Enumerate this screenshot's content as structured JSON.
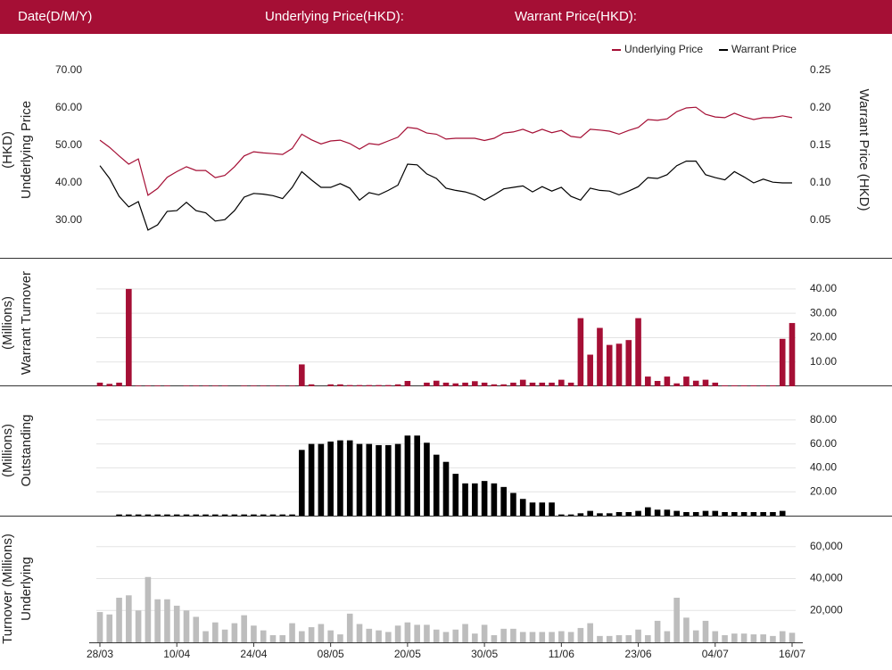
{
  "header": {
    "date_label": "Date(D/M/Y)",
    "underlying_label": "Underlying Price(HKD):",
    "warrant_label": "Warrant Price(HKD):"
  },
  "chart_data": [
    {
      "type": "line",
      "y_label": [
        "Underlying Price",
        "(HKD)"
      ],
      "y2_label": "Warrant  Price (HKD)",
      "legend": "top-right",
      "ylim": [
        30,
        70
      ],
      "yticks": [
        {
          "value": 30,
          "label": "30.00"
        },
        {
          "value": 40,
          "label": "40.00"
        },
        {
          "value": 50,
          "label": "50.00"
        },
        {
          "value": 60,
          "label": "60.00"
        },
        {
          "value": 70,
          "label": "70.00"
        }
      ],
      "y2lim": [
        0.05,
        0.25
      ],
      "y2ticks": [
        0.05,
        {
          "value": 0.1,
          "label": "0.10"
        },
        0.15,
        {
          "value": 0.2,
          "label": "0.20"
        },
        0.25
      ],
      "series": [
        {
          "name": "Underlying Price",
          "color": "#a50f35",
          "values": [
            51.4,
            49.5,
            47.2,
            45,
            46.4,
            36.7,
            38.5,
            41.5,
            43,
            44.3,
            43.3,
            43.3,
            41.4,
            42,
            44.3,
            47.2,
            48.3,
            48,
            47.8,
            47.6,
            49.2,
            53,
            51.5,
            50.4,
            51.2,
            51.4,
            50.5,
            49,
            50.5,
            50.2,
            51.2,
            52.2,
            54.8,
            54.5,
            53.3,
            53,
            51.7,
            51.9,
            51.9,
            51.9,
            51.3,
            51.9,
            53.3,
            53.6,
            54.3,
            53.3,
            54.3,
            53.4,
            54,
            52.4,
            52.1,
            54.3,
            54.1,
            53.8,
            53,
            54,
            54.8,
            56.9,
            56.7,
            57.1,
            59,
            60,
            60.2,
            58.3,
            57.6,
            57.4,
            58.6,
            57.6,
            56.9,
            57.4,
            57.4,
            57.9,
            57.4
          ]
        },
        {
          "name": "Warrant Price",
          "color": "#000000",
          "axis": "y2",
          "values": [
            0.123,
            0.106,
            0.082,
            0.068,
            0.075,
            0.037,
            0.044,
            0.062,
            0.063,
            0.074,
            0.063,
            0.06,
            0.049,
            0.051,
            0.063,
            0.081,
            0.086,
            0.085,
            0.083,
            0.079,
            0.094,
            0.115,
            0.104,
            0.094,
            0.094,
            0.099,
            0.093,
            0.077,
            0.087,
            0.084,
            0.09,
            0.097,
            0.125,
            0.124,
            0.112,
            0.106,
            0.093,
            0.09,
            0.088,
            0.084,
            0.077,
            0.084,
            0.092,
            0.094,
            0.096,
            0.088,
            0.095,
            0.089,
            0.094,
            0.082,
            0.077,
            0.093,
            0.09,
            0.089,
            0.084,
            0.089,
            0.095,
            0.107,
            0.106,
            0.111,
            0.123,
            0.129,
            0.129,
            0.111,
            0.107,
            0.104,
            0.115,
            0.108,
            0.1,
            0.105,
            0.101,
            0.1,
            0.1
          ]
        }
      ]
    },
    {
      "type": "bar",
      "y_label": [
        "Warrant  Turnover",
        "(Millions)"
      ],
      "color": "#a50f35",
      "grid": true,
      "ylim": [
        0,
        50
      ],
      "yticks": [
        {
          "value": 10,
          "label": "10.00"
        },
        {
          "value": 20,
          "label": "20.00"
        },
        {
          "value": 30,
          "label": "30.00"
        },
        {
          "value": 40,
          "label": "40.00"
        }
      ],
      "values": [
        1.5,
        1,
        1.5,
        40,
        0.3,
        0.3,
        0.3,
        0.3,
        0,
        0.3,
        0.3,
        0.3,
        0.3,
        0.3,
        0,
        0.3,
        0.3,
        0.3,
        0.3,
        0.3,
        0.3,
        9,
        0.8,
        0,
        0.8,
        0.8,
        0.5,
        0.5,
        0.5,
        0.5,
        0.5,
        0.8,
        2.2,
        0,
        1.5,
        2.3,
        1.5,
        1.2,
        1.5,
        2.1,
        1.5,
        0.8,
        0.8,
        1.5,
        2.7,
        1.5,
        1.5,
        1.5,
        2.7,
        1.5,
        28,
        13,
        24,
        17,
        17.5,
        19,
        28,
        4,
        2.2,
        4,
        1.2,
        4,
        2.3,
        2.7,
        1.5,
        0.4,
        0.4,
        0.4,
        0.4,
        0.4,
        0.4,
        19.5,
        26
      ]
    },
    {
      "type": "bar",
      "y_label": [
        "Outstanding",
        "(Millions)"
      ],
      "color": "#000000",
      "grid": true,
      "ylim": [
        0,
        100
      ],
      "yticks": [
        {
          "value": 20,
          "label": "20.00"
        },
        {
          "value": 40,
          "label": "40.00"
        },
        {
          "value": 60,
          "label": "60.00"
        },
        {
          "value": 80,
          "label": "80.00"
        }
      ],
      "values": [
        0,
        0,
        1,
        1,
        1,
        1,
        1,
        1,
        1,
        1,
        1,
        1,
        1,
        1,
        1,
        1,
        1,
        1,
        1,
        1,
        1,
        55,
        60,
        60,
        62,
        63,
        63,
        60,
        60,
        59,
        59,
        60,
        67,
        67,
        61,
        51,
        45,
        35,
        27,
        27,
        29,
        27,
        24,
        19,
        14,
        11,
        11,
        11,
        1,
        1,
        2,
        4,
        2,
        2,
        3,
        3,
        4,
        7,
        5,
        5,
        4,
        3,
        3,
        4,
        4,
        3,
        3,
        3,
        3,
        3,
        3,
        4,
        0
      ]
    },
    {
      "type": "bar",
      "y_label": [
        "Underlying",
        "Turnover (Millions)"
      ],
      "color": "#bdbdbd",
      "grid": true,
      "ylim": [
        0,
        75000
      ],
      "yticks": [
        {
          "value": 20000,
          "label": "20,000"
        },
        {
          "value": 40000,
          "label": "40,000"
        },
        {
          "value": 60000,
          "label": "60,000"
        }
      ],
      "categories": [
        "28/03",
        null,
        null,
        null,
        null,
        null,
        null,
        null,
        "10/04",
        null,
        null,
        null,
        null,
        null,
        null,
        null,
        "24/04",
        null,
        null,
        null,
        null,
        null,
        null,
        null,
        "08/05",
        null,
        null,
        null,
        null,
        null,
        null,
        null,
        "20/05",
        null,
        null,
        null,
        null,
        null,
        null,
        null,
        "30/05",
        null,
        null,
        null,
        null,
        null,
        null,
        null,
        "11/06",
        null,
        null,
        null,
        null,
        null,
        null,
        null,
        "23/06",
        null,
        null,
        null,
        null,
        null,
        null,
        null,
        "04/07",
        null,
        null,
        null,
        null,
        null,
        null,
        null,
        "16/07"
      ],
      "values": [
        19000,
        17500,
        28000,
        29500,
        20000,
        41000,
        27000,
        27000,
        23000,
        20000,
        16000,
        7000,
        12500,
        8000,
        12000,
        17000,
        10500,
        7500,
        4500,
        4500,
        12000,
        7000,
        9500,
        11500,
        7500,
        5000,
        18000,
        11500,
        8500,
        7500,
        6500,
        10500,
        12500,
        11000,
        11000,
        8000,
        6500,
        8000,
        11500,
        5500,
        11000,
        4500,
        8500,
        8500,
        6500,
        6500,
        6500,
        6500,
        7000,
        6500,
        9000,
        12000,
        4000,
        4000,
        4500,
        4500,
        8000,
        4500,
        13500,
        7000,
        28000,
        15500,
        7500,
        13500,
        7000,
        4500,
        5500,
        5500,
        5000,
        5000,
        4000,
        7000,
        6000
      ]
    }
  ]
}
